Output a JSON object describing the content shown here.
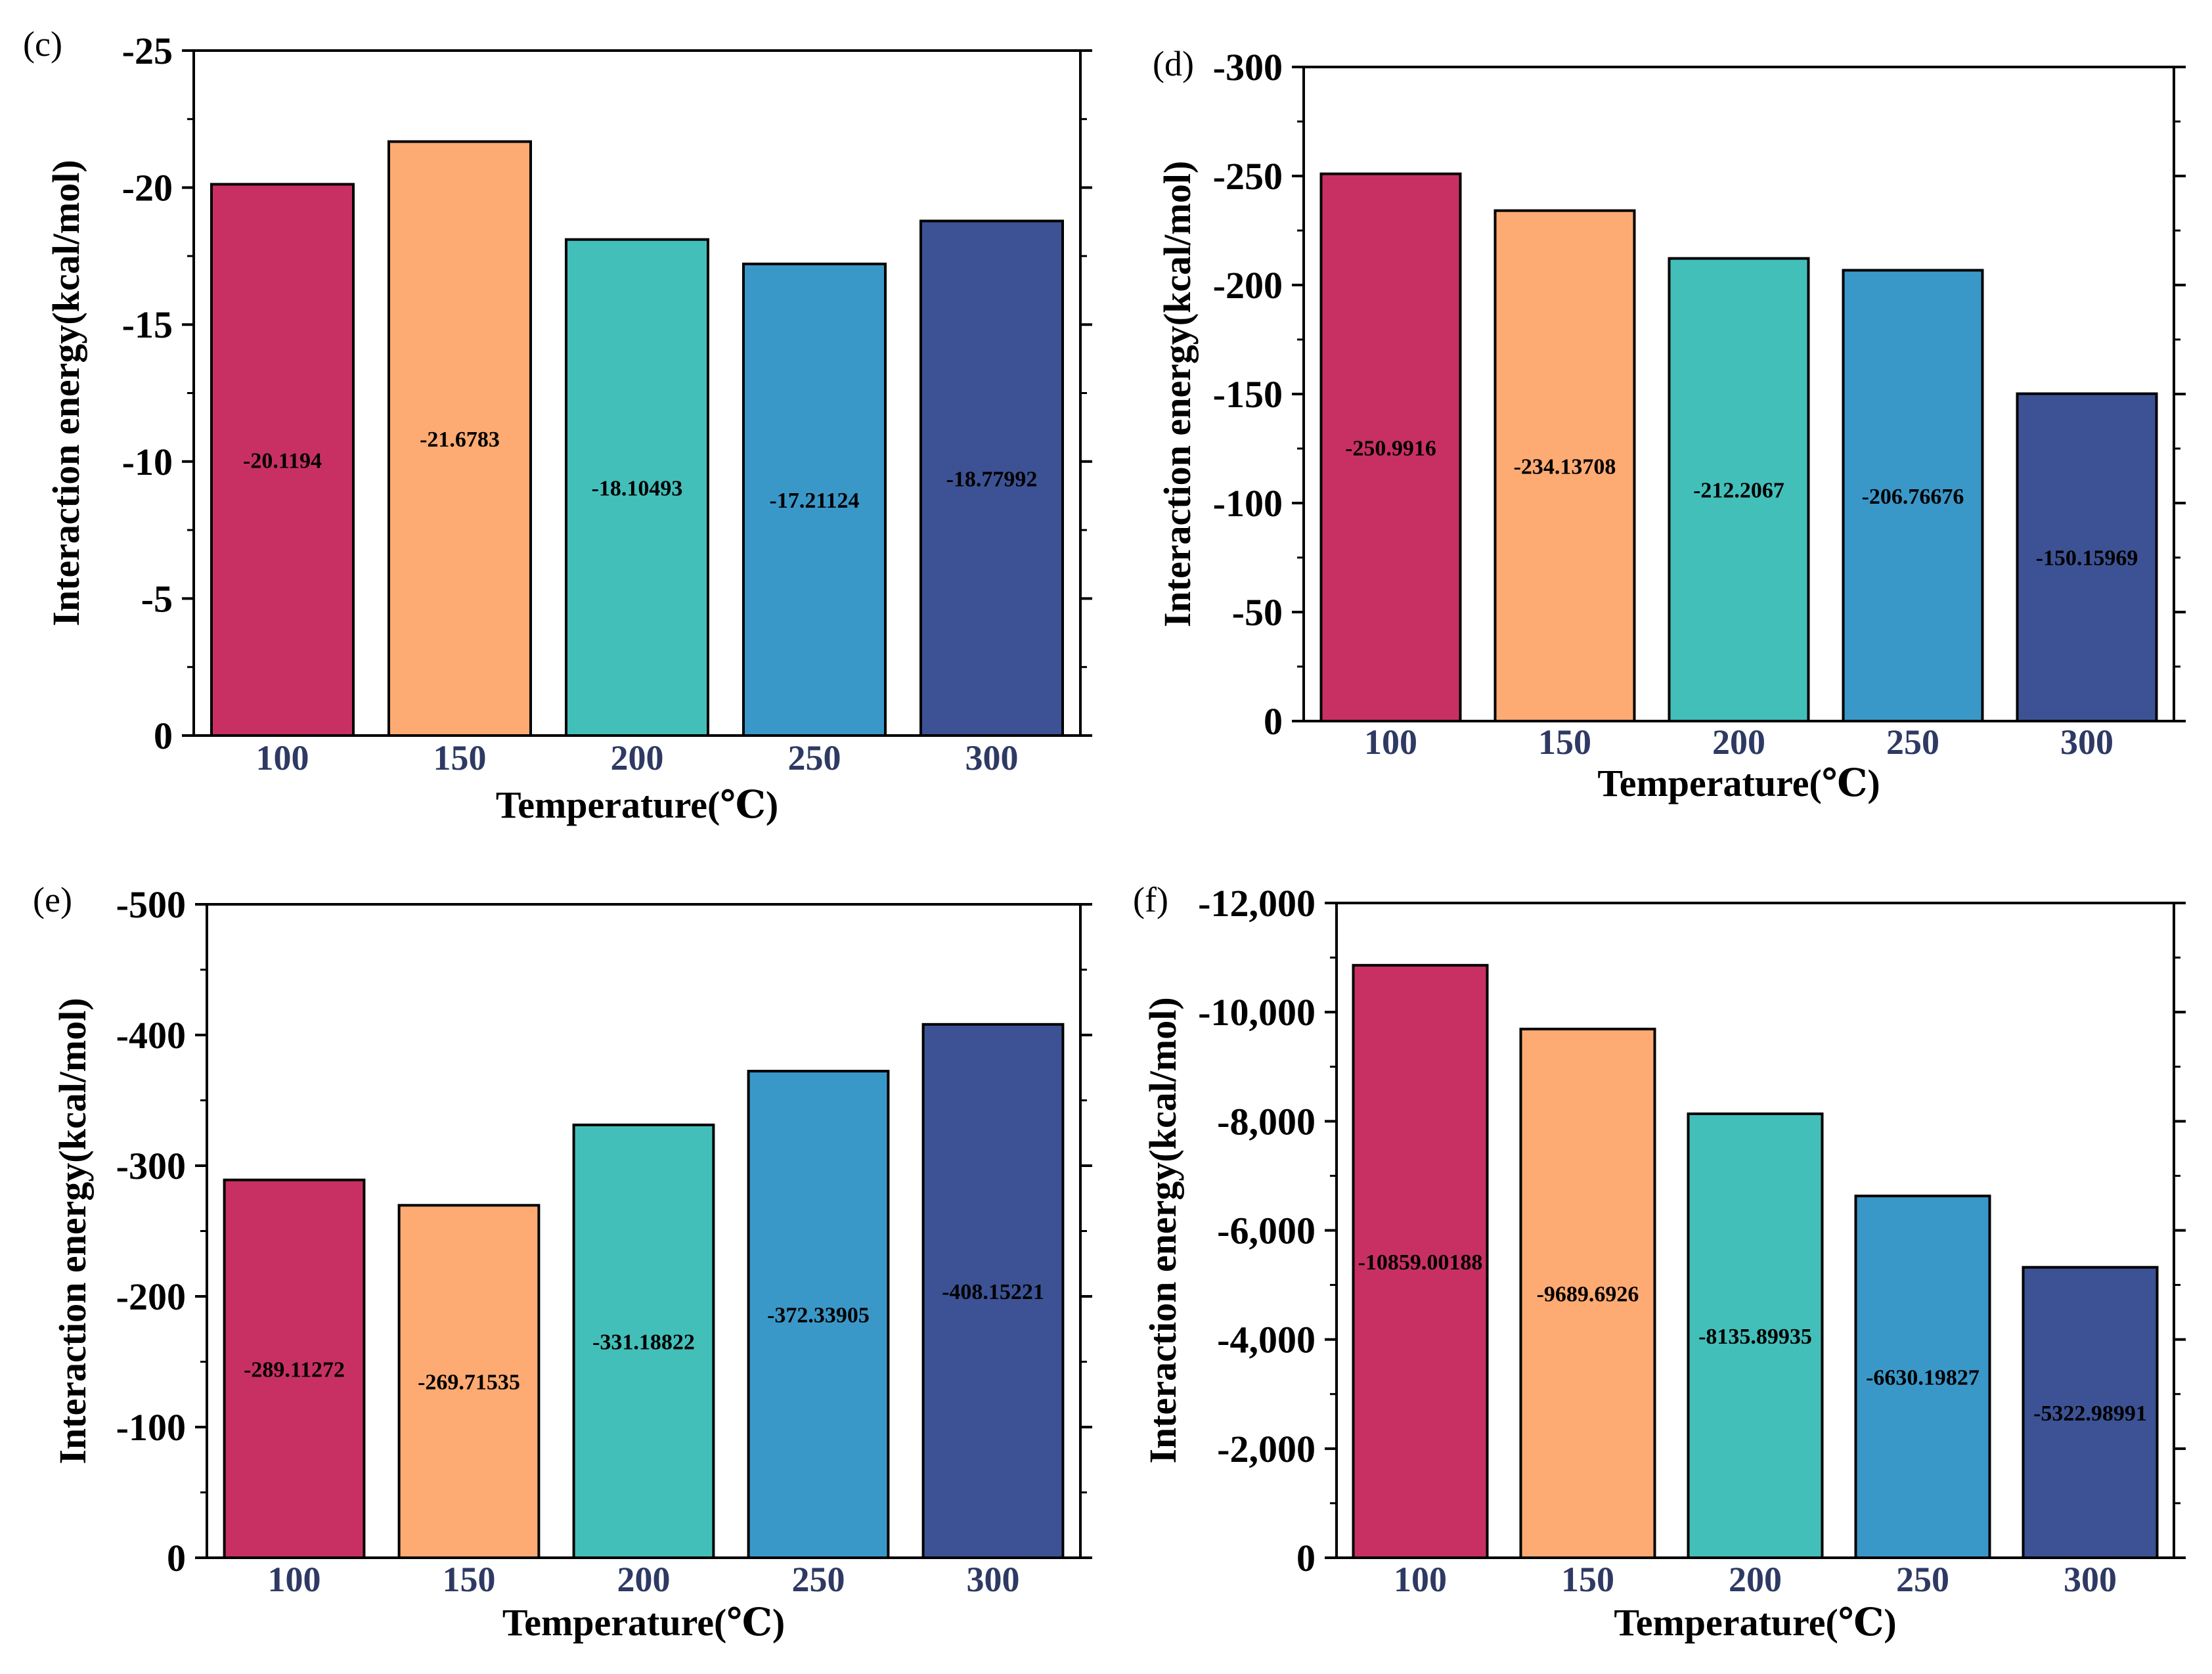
{
  "colors": {
    "bar_fills": [
      "#c83064",
      "#fdaa73",
      "#43bfba",
      "#3a98c9",
      "#3c5294"
    ],
    "x_tick_color": "#2e3a63",
    "axis_color": "#000000"
  },
  "chart_data": [
    {
      "panel_label": "(c)",
      "type": "bar",
      "xlabel": "Temperature(℃)",
      "ylabel": "Interaction energy(kcal/mol)",
      "categories": [
        "100",
        "150",
        "200",
        "250",
        "300"
      ],
      "values": [
        -20.1194,
        -21.6783,
        -18.10493,
        -17.21124,
        -18.77992
      ],
      "data_labels": [
        "-20.1194",
        "-21.6783",
        "-18.10493",
        "-17.21124",
        "-18.77992"
      ],
      "ylim": [
        0,
        -25
      ],
      "yticks": [
        0,
        -5,
        -10,
        -15,
        -20,
        -25
      ],
      "ytick_labels": [
        "0",
        "-5",
        "-10",
        "-15",
        "-20",
        "-25"
      ],
      "grid": false
    },
    {
      "panel_label": "(d)",
      "type": "bar",
      "xlabel": "Temperature(℃)",
      "ylabel": "Interaction energy(kcal/mol)",
      "categories": [
        "100",
        "150",
        "200",
        "250",
        "300"
      ],
      "values": [
        -250.9916,
        -234.13708,
        -212.2067,
        -206.76676,
        -150.15969
      ],
      "data_labels": [
        "-250.9916",
        "-234.13708",
        "-212.2067",
        "-206.76676",
        "-150.15969"
      ],
      "ylim": [
        0,
        -300
      ],
      "yticks": [
        0,
        -50,
        -100,
        -150,
        -200,
        -250,
        -300
      ],
      "ytick_labels": [
        "0",
        "-50",
        "-100",
        "-150",
        "-200",
        "-250",
        "-300"
      ],
      "grid": false
    },
    {
      "panel_label": "(e)",
      "type": "bar",
      "xlabel": "Temperature(℃)",
      "ylabel": "Interaction energy(kcal/mol)",
      "categories": [
        "100",
        "150",
        "200",
        "250",
        "300"
      ],
      "values": [
        -289.11272,
        -269.71535,
        -331.18822,
        -372.33905,
        -408.15221
      ],
      "data_labels": [
        "-289.11272",
        "-269.71535",
        "-331.18822",
        "-372.33905",
        "-408.15221"
      ],
      "ylim": [
        0,
        -500
      ],
      "yticks": [
        0,
        -100,
        -200,
        -300,
        -400,
        -500
      ],
      "ytick_labels": [
        "0",
        "-100",
        "-200",
        "-300",
        "-400",
        "-500"
      ],
      "grid": false
    },
    {
      "panel_label": "(f)",
      "type": "bar",
      "xlabel": "Temperature(℃)",
      "ylabel": "Interaction energy(kcal/mol)",
      "categories": [
        "100",
        "150",
        "200",
        "250",
        "300"
      ],
      "values": [
        -10859.00188,
        -9689.6926,
        -8135.89935,
        -6630.19827,
        -5322.98991
      ],
      "data_labels": [
        "-10859.00188",
        "-9689.6926",
        "-8135.89935",
        "-6630.19827",
        "-5322.98991"
      ],
      "ylim": [
        0,
        -12000
      ],
      "yticks": [
        0,
        -2000,
        -4000,
        -6000,
        -8000,
        -10000,
        -12000
      ],
      "ytick_labels": [
        "0",
        "-2,000",
        "-4,000",
        "-6,000",
        "-8,000",
        "-10,000",
        "-12,000"
      ],
      "grid": false
    }
  ]
}
